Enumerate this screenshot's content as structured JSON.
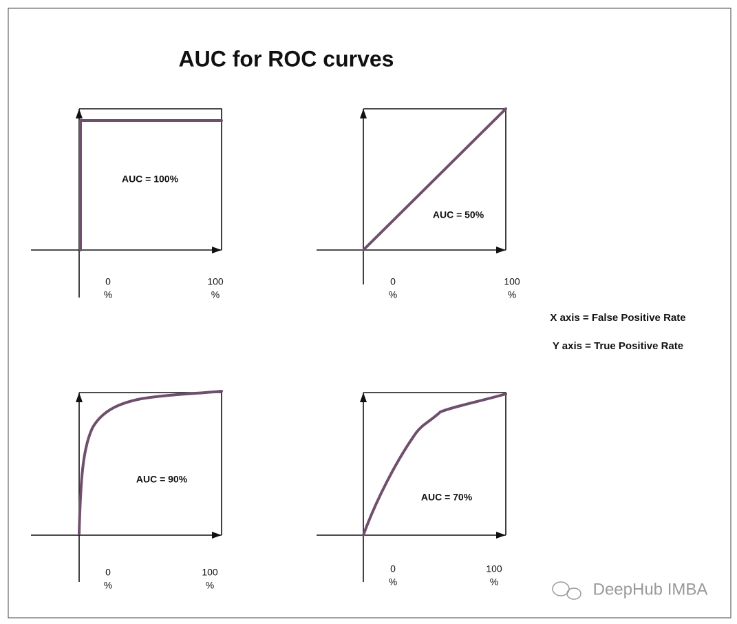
{
  "title": "AUC for ROC curves",
  "panels": [
    {
      "auc_label": "AUC = 100%",
      "x_start": [
        "0",
        "%"
      ],
      "x_end": [
        "100",
        "%"
      ]
    },
    {
      "auc_label": "AUC = 50%",
      "x_start": [
        "0",
        "%"
      ],
      "x_end": [
        "100",
        "%"
      ]
    },
    {
      "auc_label": "AUC = 90%",
      "x_start": [
        "0",
        "%"
      ],
      "x_end": [
        "100",
        "%"
      ]
    },
    {
      "auc_label": "AUC = 70%",
      "x_start": [
        "0",
        "%"
      ],
      "x_end": [
        "100",
        "%"
      ]
    }
  ],
  "legend": [
    "X axis = False Positive Rate",
    "Y axis = True Positive Rate"
  ],
  "watermark": "DeepHub IMBA"
}
